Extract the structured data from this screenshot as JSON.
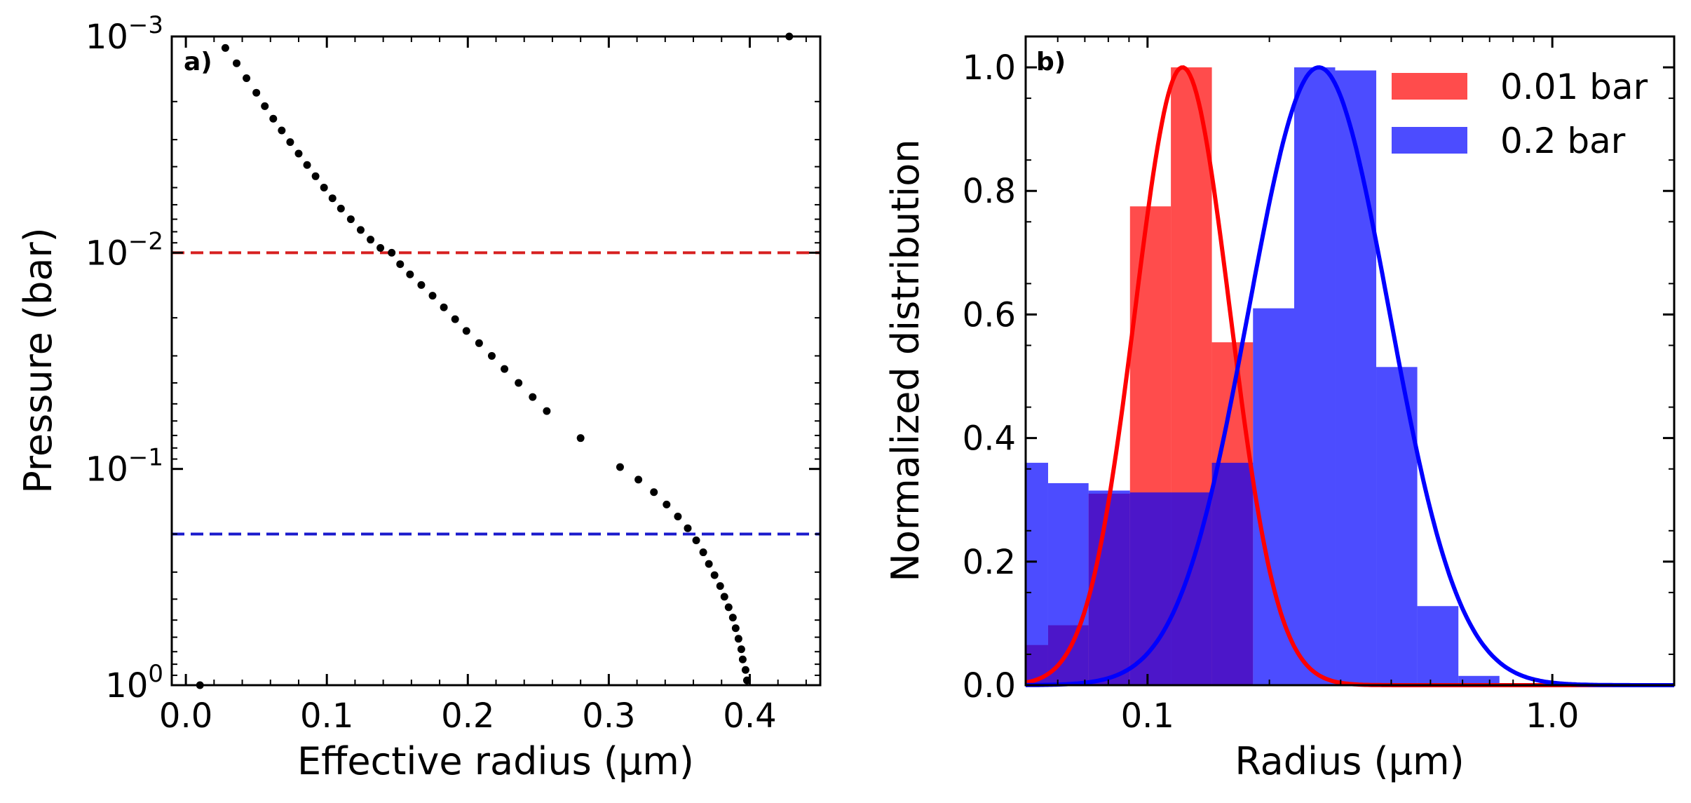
{
  "chart_data": [
    {
      "panel": "a)",
      "type": "scatter",
      "xlabel": "Effective radius (μm)",
      "ylabel": "Pressure (bar)",
      "xlim": [
        -0.01,
        0.45
      ],
      "ylim": [
        1,
        0.001
      ],
      "yscale": "log",
      "yinverted": true,
      "xticks": [
        0.0,
        0.1,
        0.2,
        0.3,
        0.4
      ],
      "xtick_labels": [
        "0.0",
        "0.1",
        "0.2",
        "0.3",
        "0.4"
      ],
      "yticks": [
        0.001,
        0.01,
        0.1,
        1
      ],
      "ytick_labels": [
        {
          "base": "10",
          "exp": "−3"
        },
        {
          "base": "10",
          "exp": "−2"
        },
        {
          "base": "10",
          "exp": "−1"
        },
        {
          "base": "10",
          "exp": "0"
        }
      ],
      "hlines": [
        {
          "y": 0.01,
          "color": "#d62020",
          "style": "dashed"
        },
        {
          "y": 0.2,
          "color": "#1a1acc",
          "style": "dashed"
        }
      ],
      "marker_color": "#000000",
      "points": [
        [
          0.01,
          1.0
        ],
        [
          0.428,
          0.001
        ],
        [
          0.028,
          0.00113
        ],
        [
          0.036,
          0.00133
        ],
        [
          0.043,
          0.00156
        ],
        [
          0.05,
          0.00182
        ],
        [
          0.056,
          0.0021
        ],
        [
          0.062,
          0.0024
        ],
        [
          0.068,
          0.00272
        ],
        [
          0.074,
          0.00308
        ],
        [
          0.08,
          0.00348
        ],
        [
          0.086,
          0.00393
        ],
        [
          0.092,
          0.00443
        ],
        [
          0.098,
          0.005
        ],
        [
          0.104,
          0.0056
        ],
        [
          0.11,
          0.00625
        ],
        [
          0.117,
          0.007
        ],
        [
          0.124,
          0.00785
        ],
        [
          0.131,
          0.0087
        ],
        [
          0.138,
          0.0095
        ],
        [
          0.146,
          0.01
        ],
        [
          0.152,
          0.0113
        ],
        [
          0.159,
          0.0126
        ],
        [
          0.167,
          0.0141
        ],
        [
          0.175,
          0.0158
        ],
        [
          0.183,
          0.0179
        ],
        [
          0.191,
          0.0203
        ],
        [
          0.199,
          0.023
        ],
        [
          0.208,
          0.0262
        ],
        [
          0.217,
          0.03
        ],
        [
          0.226,
          0.0345
        ],
        [
          0.236,
          0.04
        ],
        [
          0.246,
          0.0465
        ],
        [
          0.256,
          0.054
        ],
        [
          0.28,
          0.072
        ],
        [
          0.308,
          0.098
        ],
        [
          0.321,
          0.112
        ],
        [
          0.332,
          0.128
        ],
        [
          0.341,
          0.146
        ],
        [
          0.349,
          0.166
        ],
        [
          0.356,
          0.188
        ],
        [
          0.362,
          0.214
        ],
        [
          0.367,
          0.243
        ],
        [
          0.371,
          0.275
        ],
        [
          0.375,
          0.31
        ],
        [
          0.379,
          0.348
        ],
        [
          0.382,
          0.39
        ],
        [
          0.385,
          0.436
        ],
        [
          0.388,
          0.487
        ],
        [
          0.39,
          0.545
        ],
        [
          0.392,
          0.61
        ],
        [
          0.394,
          0.682
        ],
        [
          0.395,
          0.76
        ],
        [
          0.397,
          0.85
        ],
        [
          0.398,
          0.95
        ]
      ]
    },
    {
      "panel": "b)",
      "type": "bar",
      "xlabel": "Radius (μm)",
      "ylabel": "Normalized distribution",
      "xscale": "log",
      "xlim": [
        0.05,
        2.0
      ],
      "ylim": [
        0.0,
        1.05
      ],
      "xticks": [
        0.1,
        1.0
      ],
      "xtick_labels": [
        "0.1",
        "1.0"
      ],
      "yticks": [
        0.0,
        0.2,
        0.4,
        0.6,
        0.8,
        1.0
      ],
      "ytick_labels": [
        "0.0",
        "0.2",
        "0.4",
        "0.6",
        "0.8",
        "1.0"
      ],
      "series": [
        {
          "name": "0.01 bar",
          "color": "#ff0000",
          "opacity": 0.7,
          "bins": [
            {
              "x0": 0.05,
              "x1": 0.0568,
              "value": 0.065
            },
            {
              "x0": 0.0568,
              "x1": 0.0715,
              "value": 0.097
            },
            {
              "x0": 0.0715,
              "x1": 0.0905,
              "value": 0.31
            },
            {
              "x0": 0.0905,
              "x1": 0.1142,
              "value": 0.775
            },
            {
              "x0": 0.1142,
              "x1": 0.1442,
              "value": 1.0
            },
            {
              "x0": 0.1442,
              "x1": 0.1822,
              "value": 0.555
            }
          ],
          "curve": {
            "type": "lognormal",
            "peak_x": 0.122,
            "sigma_ln": 0.27,
            "peak": 1.0
          }
        },
        {
          "name": "0.2 bar",
          "color": "#0000ff",
          "opacity": 0.7,
          "bins": [
            {
              "x0": 0.05,
              "x1": 0.0568,
              "value": 0.36
            },
            {
              "x0": 0.0568,
              "x1": 0.0715,
              "value": 0.327
            },
            {
              "x0": 0.0715,
              "x1": 0.0905,
              "value": 0.315
            },
            {
              "x0": 0.0905,
              "x1": 0.1442,
              "value": 0.312
            },
            {
              "x0": 0.1442,
              "x1": 0.1822,
              "value": 0.36
            },
            {
              "x0": 0.1822,
              "x1": 0.2303,
              "value": 0.61
            },
            {
              "x0": 0.2303,
              "x1": 0.2908,
              "value": 1.0
            },
            {
              "x0": 0.2908,
              "x1": 0.3673,
              "value": 0.995
            },
            {
              "x0": 0.3673,
              "x1": 0.4639,
              "value": 0.515
            },
            {
              "x0": 0.4639,
              "x1": 0.5861,
              "value": 0.128
            },
            {
              "x0": 0.5861,
              "x1": 0.7403,
              "value": 0.015
            }
          ],
          "curve": {
            "type": "lognormal",
            "peak_x": 0.265,
            "sigma_ln": 0.4,
            "peak": 1.0
          }
        }
      ],
      "legend": {
        "position": "top-right"
      }
    }
  ]
}
